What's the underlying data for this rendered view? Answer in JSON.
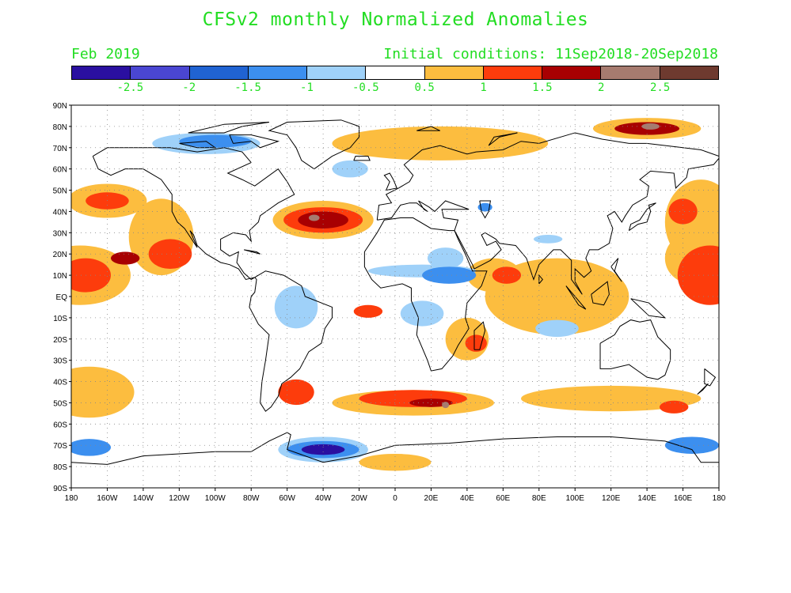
{
  "title": "CFSv2 monthly Normalized Anomalies",
  "month_label": "Feb 2019",
  "initial_conditions": "Initial conditions: 11Sep2018-20Sep2018",
  "colorbar": {
    "colors": [
      "#2a0fa0",
      "#4a46d2",
      "#2063d2",
      "#3c8fef",
      "#9fd1f9",
      "#ffffff",
      "#fcbd3f",
      "#fd3c0c",
      "#a80002",
      "#a67b6f",
      "#6e3a2f"
    ],
    "labels": [
      "-2.5",
      "-2",
      "-1.5",
      "-1",
      "-0.5",
      "0.5",
      "1",
      "1.5",
      "2",
      "2.5"
    ]
  },
  "lat_labels": [
    "90N",
    "80N",
    "70N",
    "60N",
    "50N",
    "40N",
    "30N",
    "20N",
    "10N",
    "EQ",
    "10S",
    "20S",
    "30S",
    "40S",
    "50S",
    "60S",
    "70S",
    "80S",
    "90S"
  ],
  "lon_labels": [
    "180",
    "160W",
    "140W",
    "120W",
    "100W",
    "80W",
    "60W",
    "40W",
    "20W",
    "0",
    "20E",
    "40E",
    "60E",
    "80E",
    "100E",
    "120E",
    "140E",
    "160E",
    "180"
  ],
  "anomaly_blobs": [
    {
      "lon": -160,
      "lat": 45,
      "rx": 22,
      "ry": 8,
      "level": "orange"
    },
    {
      "lon": -160,
      "lat": 45,
      "rx": 12,
      "ry": 4,
      "level": "red"
    },
    {
      "lon": -175,
      "lat": 10,
      "rx": 28,
      "ry": 14,
      "level": "orange"
    },
    {
      "lon": -172,
      "lat": 10,
      "rx": 14,
      "ry": 8,
      "level": "red"
    },
    {
      "lon": -150,
      "lat": 18,
      "rx": 8,
      "ry": 3,
      "level": "darkred"
    },
    {
      "lon": -125,
      "lat": 20,
      "rx": 12,
      "ry": 7,
      "level": "red"
    },
    {
      "lon": -130,
      "lat": 28,
      "rx": 18,
      "ry": 18,
      "level": "orange"
    },
    {
      "lon": -40,
      "lat": 36,
      "rx": 28,
      "ry": 9,
      "level": "orange"
    },
    {
      "lon": -40,
      "lat": 36,
      "rx": 22,
      "ry": 6,
      "level": "red"
    },
    {
      "lon": -40,
      "lat": 36,
      "rx": 14,
      "ry": 4,
      "level": "darkred"
    },
    {
      "lon": -45,
      "lat": 37,
      "rx": 3,
      "ry": 1.5,
      "level": "brown"
    },
    {
      "lon": -15,
      "lat": -7,
      "rx": 8,
      "ry": 3,
      "level": "red"
    },
    {
      "lon": 140,
      "lat": 79,
      "rx": 30,
      "ry": 5,
      "level": "orange"
    },
    {
      "lon": 140,
      "lat": 79,
      "rx": 18,
      "ry": 3,
      "level": "darkred"
    },
    {
      "lon": 142,
      "lat": 80,
      "rx": 5,
      "ry": 1.5,
      "level": "brown"
    },
    {
      "lon": 170,
      "lat": 35,
      "rx": 20,
      "ry": 20,
      "level": "orange"
    },
    {
      "lon": 175,
      "lat": 10,
      "rx": 18,
      "ry": 14,
      "level": "red"
    },
    {
      "lon": 160,
      "lat": 40,
      "rx": 8,
      "ry": 6,
      "level": "red"
    },
    {
      "lon": 55,
      "lat": 10,
      "rx": 15,
      "ry": 8,
      "level": "orange"
    },
    {
      "lon": 62,
      "lat": 10,
      "rx": 8,
      "ry": 4,
      "level": "red"
    },
    {
      "lon": 40,
      "lat": -20,
      "rx": 12,
      "ry": 10,
      "level": "orange"
    },
    {
      "lon": 45,
      "lat": -22,
      "rx": 6,
      "ry": 4,
      "level": "red"
    },
    {
      "lon": 10,
      "lat": -50,
      "rx": 45,
      "ry": 6,
      "level": "orange"
    },
    {
      "lon": 10,
      "lat": -48,
      "rx": 30,
      "ry": 4,
      "level": "red"
    },
    {
      "lon": 20,
      "lat": -50,
      "rx": 12,
      "ry": 2,
      "level": "darkred"
    },
    {
      "lon": 28,
      "lat": -51,
      "rx": 2,
      "ry": 1.5,
      "level": "brown"
    },
    {
      "lon": -55,
      "lat": -45,
      "rx": 10,
      "ry": 6,
      "level": "red"
    },
    {
      "lon": 120,
      "lat": -48,
      "rx": 50,
      "ry": 6,
      "level": "orange"
    },
    {
      "lon": 155,
      "lat": -52,
      "rx": 8,
      "ry": 3,
      "level": "red"
    },
    {
      "lon": -170,
      "lat": -45,
      "rx": 25,
      "ry": 12,
      "level": "orange"
    },
    {
      "lon": 90,
      "lat": 0,
      "rx": 40,
      "ry": 18,
      "level": "orange"
    },
    {
      "lon": 25,
      "lat": 72,
      "rx": 60,
      "ry": 8,
      "level": "orange"
    },
    {
      "lon": 165,
      "lat": 18,
      "rx": 15,
      "ry": 12,
      "level": "orange"
    },
    {
      "lon": 0,
      "lat": -78,
      "rx": 20,
      "ry": 4,
      "level": "orange"
    },
    {
      "lon": -40,
      "lat": -72,
      "rx": 25,
      "ry": 6,
      "level": "lightblue"
    },
    {
      "lon": -40,
      "lat": -72,
      "rx": 20,
      "ry": 4,
      "level": "blue"
    },
    {
      "lon": -40,
      "lat": -72,
      "rx": 12,
      "ry": 2.5,
      "level": "navy"
    },
    {
      "lon": -170,
      "lat": -71,
      "rx": 12,
      "ry": 4,
      "level": "blue"
    },
    {
      "lon": 165,
      "lat": -70,
      "rx": 15,
      "ry": 4,
      "level": "blue"
    },
    {
      "lon": -105,
      "lat": 72,
      "rx": 30,
      "ry": 5,
      "level": "lightblue"
    },
    {
      "lon": -100,
      "lat": 73,
      "rx": 20,
      "ry": 3,
      "level": "blue"
    },
    {
      "lon": -25,
      "lat": 60,
      "rx": 10,
      "ry": 4,
      "level": "lightblue"
    },
    {
      "lon": 15,
      "lat": 12,
      "rx": 30,
      "ry": 3,
      "level": "lightblue"
    },
    {
      "lon": 30,
      "lat": 10,
      "rx": 15,
      "ry": 4,
      "level": "blue"
    },
    {
      "lon": 15,
      "lat": -8,
      "rx": 12,
      "ry": 6,
      "level": "lightblue"
    },
    {
      "lon": -55,
      "lat": -5,
      "rx": 12,
      "ry": 10,
      "level": "lightblue"
    },
    {
      "lon": 90,
      "lat": -15,
      "rx": 12,
      "ry": 4,
      "level": "lightblue"
    },
    {
      "lon": 50,
      "lat": 42,
      "rx": 4,
      "ry": 2,
      "level": "blue"
    },
    {
      "lon": 85,
      "lat": 27,
      "rx": 8,
      "ry": 2,
      "level": "lightblue"
    },
    {
      "lon": 28,
      "lat": 18,
      "rx": 10,
      "ry": 5,
      "level": "lightblue"
    }
  ],
  "level_colors": {
    "navy": "#2a0fa0",
    "blue": "#3c8fef",
    "lightblue": "#9fd1f9",
    "orange": "#fcbd3f",
    "red": "#fd3c0c",
    "darkred": "#a80002",
    "brown": "#a67b6f"
  }
}
